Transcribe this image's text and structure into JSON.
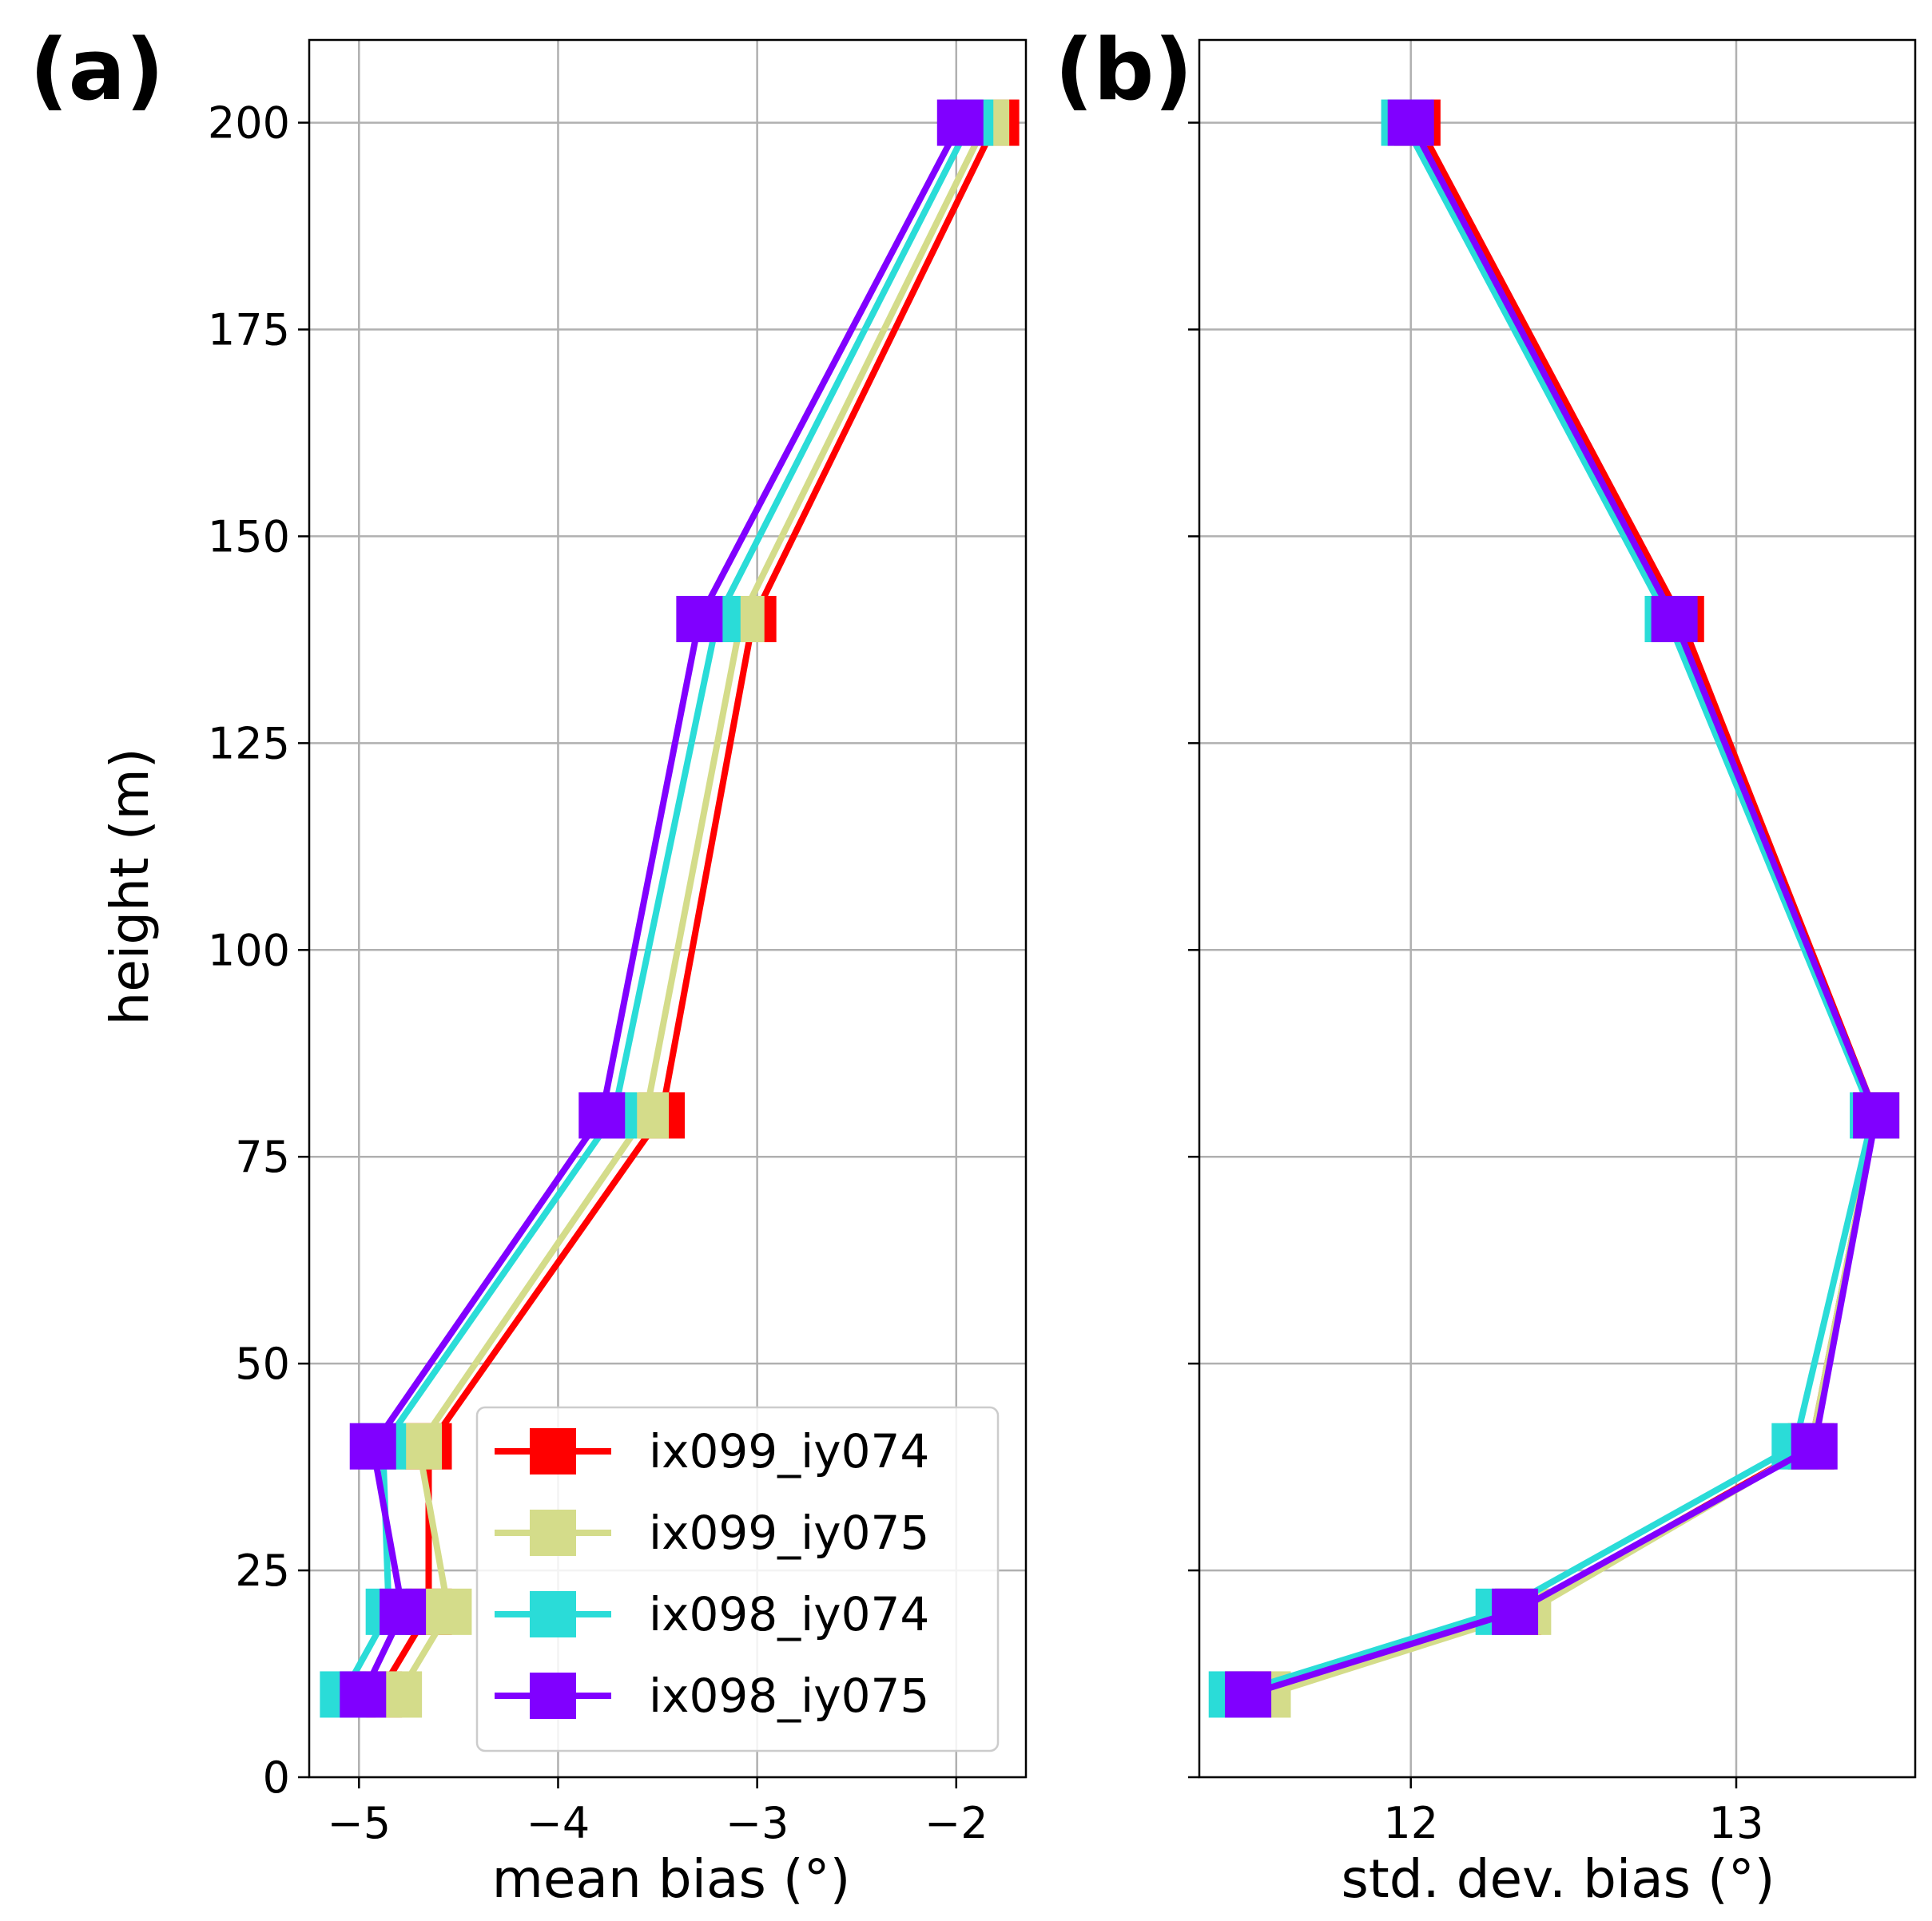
{
  "colors": {
    "ix099_iy074": "#ff0000",
    "ix099_iy075": "#d4dc8a",
    "ix098_iy074": "#2adcd8",
    "ix098_iy075": "#8000ff",
    "grid": "#b0b0b0",
    "axis": "#000000"
  },
  "chart_data": [
    {
      "type": "line",
      "panel_label": "(a)",
      "xlabel": "mean bias (°)",
      "ylabel": "height (m)",
      "xlim": [
        -5.25,
        -1.65
      ],
      "ylim": [
        0,
        210
      ],
      "xticks": [
        -5,
        -4,
        -3,
        -2
      ],
      "xtick_labels": [
        "−5",
        "−4",
        "−3",
        "−2"
      ],
      "yticks": [
        0,
        25,
        50,
        75,
        100,
        125,
        150,
        175,
        200
      ],
      "ytick_labels": [
        "0",
        "25",
        "50",
        "75",
        "100",
        "125",
        "150",
        "175",
        "200"
      ],
      "grid": true,
      "legend": "lower-right",
      "heights": [
        10,
        20,
        40,
        80,
        140,
        200
      ],
      "series": [
        {
          "name": "ix099_iy074",
          "values": [
            -4.9,
            -4.65,
            -4.65,
            -3.48,
            -3.02,
            -1.8
          ]
        },
        {
          "name": "ix099_iy075",
          "values": [
            -4.8,
            -4.55,
            -4.7,
            -3.56,
            -3.08,
            -1.85
          ]
        },
        {
          "name": "ix098_iy074",
          "values": [
            -5.08,
            -4.85,
            -4.88,
            -3.72,
            -3.2,
            -1.93
          ]
        },
        {
          "name": "ix098_iy075",
          "values": [
            -4.98,
            -4.78,
            -4.93,
            -3.78,
            -3.29,
            -1.98
          ]
        }
      ]
    },
    {
      "type": "line",
      "panel_label": "(b)",
      "xlabel": "std. dev. bias (°)",
      "ylabel": "",
      "xlim": [
        11.35,
        13.55
      ],
      "ylim": [
        0,
        210
      ],
      "xticks": [
        12,
        13
      ],
      "xtick_labels": [
        "12",
        "13"
      ],
      "yticks": [
        0,
        25,
        50,
        75,
        100,
        125,
        150,
        175,
        200
      ],
      "ytick_labels": [],
      "grid": true,
      "heights": [
        10,
        20,
        40,
        80,
        140,
        200
      ],
      "series": [
        {
          "name": "ix099_iy074",
          "values": [
            11.5,
            12.33,
            13.23,
            13.43,
            12.83,
            12.02
          ]
        },
        {
          "name": "ix099_iy075",
          "values": [
            11.56,
            12.36,
            13.23,
            13.43,
            12.8,
            11.99
          ]
        },
        {
          "name": "ix098_iy074",
          "values": [
            11.45,
            12.27,
            13.18,
            13.42,
            12.79,
            11.98
          ]
        },
        {
          "name": "ix098_iy075",
          "values": [
            11.5,
            12.32,
            13.24,
            13.43,
            12.81,
            12.0
          ]
        }
      ]
    }
  ]
}
